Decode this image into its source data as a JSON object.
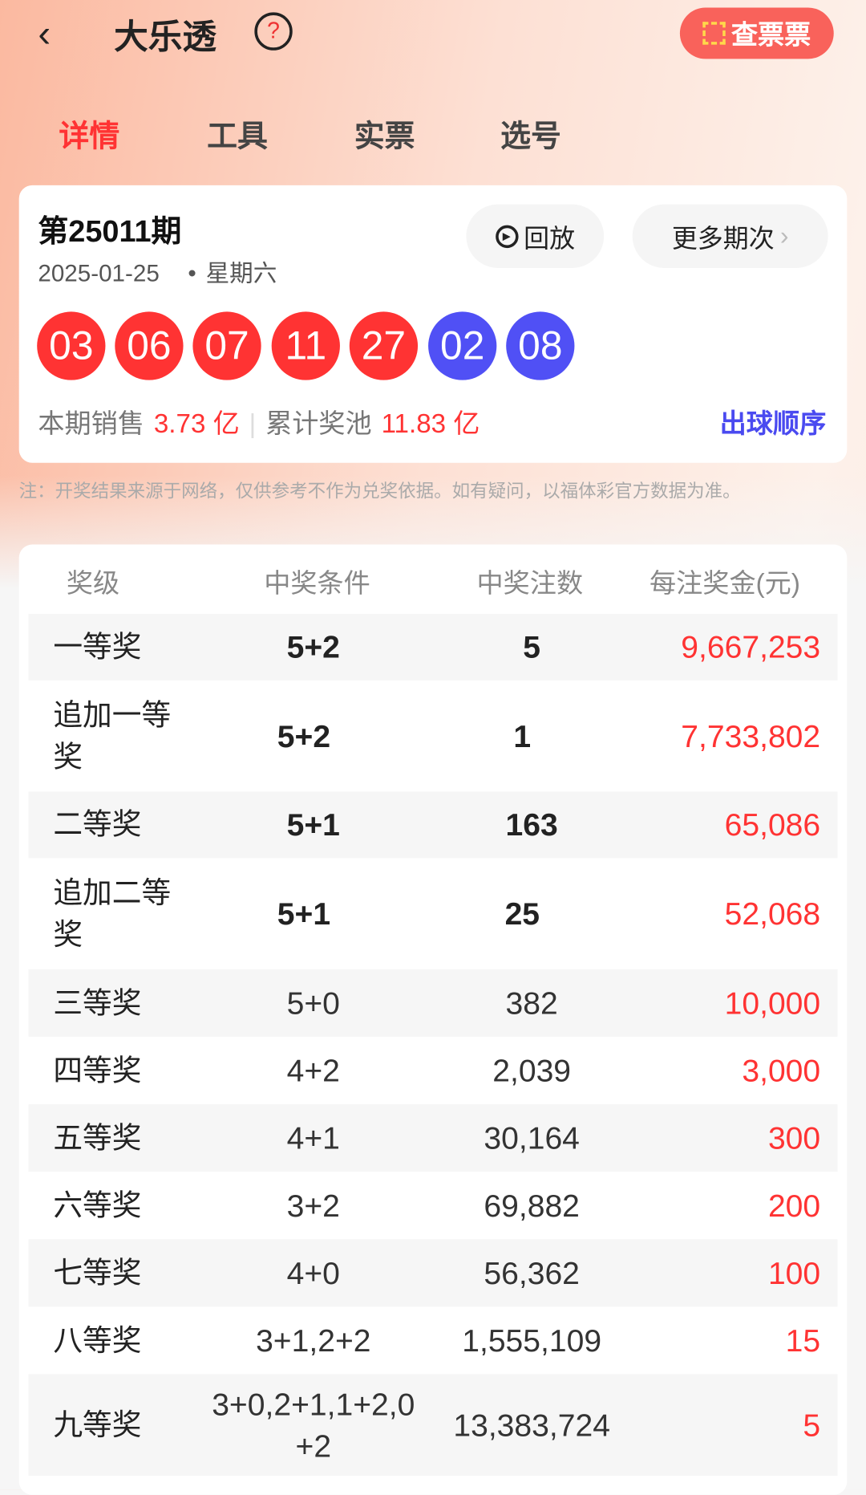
{
  "header": {
    "back_icon": "chevron-left-icon",
    "title": "大乐透",
    "help_icon": "question-circle-icon",
    "check_ticket_label": "查票票",
    "check_ticket_icon": "scan-icon"
  },
  "tabs": [
    {
      "label": "详情",
      "active": true
    },
    {
      "label": "工具"
    },
    {
      "label": "实票"
    },
    {
      "label": "选号"
    }
  ],
  "draw": {
    "issue": "第25011期",
    "date": "2025-01-25",
    "weekday": "星期六",
    "replay_label": "回放",
    "more_label": "更多期次",
    "more_icon": "chevron-right-icon",
    "red_balls": [
      "03",
      "06",
      "07",
      "11",
      "27"
    ],
    "blue_balls": [
      "02",
      "08"
    ],
    "sales_label": "本期销售",
    "sales_value": "3.73 亿",
    "pool_label": "累计奖池",
    "pool_value": "11.83 亿",
    "order_label": "出球顺序"
  },
  "colors": {
    "red": "#ff3333",
    "blue": "#5050f5",
    "accent_button": "#f9625b",
    "link": "#4a4af0"
  },
  "note": "注：开奖结果来源于网络，仅供参考不作为兑奖依据。如有疑问，以福体彩官方数据为准。",
  "table": {
    "headers": [
      "奖级",
      "中奖条件",
      "中奖注数",
      "每注奖金(元)"
    ],
    "rows": [
      [
        "一等奖",
        "5+2",
        "5",
        "9,667,253"
      ],
      [
        "追加一等奖",
        "5+2",
        "1",
        "7,733,802"
      ],
      [
        "二等奖",
        "5+1",
        "163",
        "65,086"
      ],
      [
        "追加二等奖",
        "5+1",
        "25",
        "52,068"
      ],
      [
        "三等奖",
        "5+0",
        "382",
        "10,000"
      ],
      [
        "四等奖",
        "4+2",
        "2,039",
        "3,000"
      ],
      [
        "五等奖",
        "4+1",
        "30,164",
        "300"
      ],
      [
        "六等奖",
        "3+2",
        "69,882",
        "200"
      ],
      [
        "七等奖",
        "4+0",
        "56,362",
        "100"
      ],
      [
        "八等奖",
        "3+1,2+2",
        "1,555,109",
        "15"
      ],
      [
        "九等奖",
        "3+0,2+1,1+2,0+2",
        "13,383,724",
        "5"
      ]
    ]
  }
}
